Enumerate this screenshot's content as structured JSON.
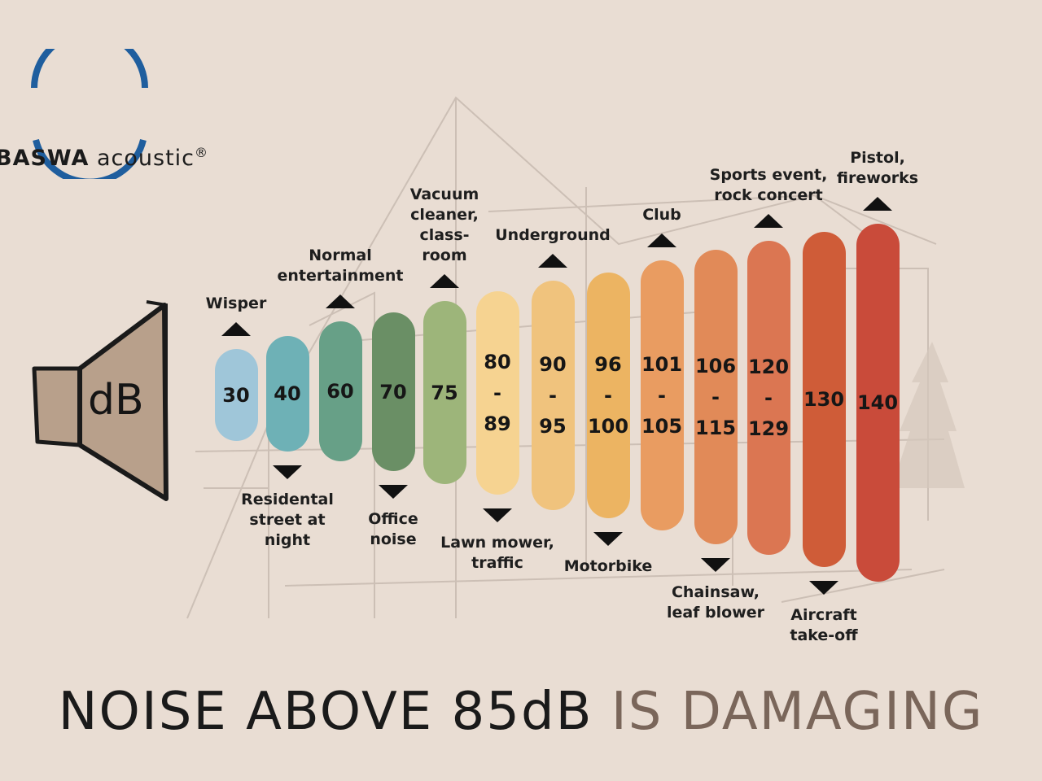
{
  "logo": {
    "brand": "BASWA",
    "word": "acoustic",
    "reg": "®",
    "ring_color": "#1f5e9e"
  },
  "speaker": {
    "label": "dB"
  },
  "headline": {
    "part1": "NOISE ABOVE 85dB ",
    "part2": "IS DAMAGING"
  },
  "chart_data": {
    "type": "bar",
    "title": "",
    "unit": "dB",
    "levels": [
      {
        "lines": [
          "30"
        ],
        "min": 30,
        "max": 30,
        "color": "#9fc6d9",
        "label": "Wisper",
        "label_side": "top"
      },
      {
        "lines": [
          "40"
        ],
        "min": 40,
        "max": 40,
        "color": "#6eb1b6",
        "label": "Residental\nstreet at\nnight",
        "label_side": "bottom"
      },
      {
        "lines": [
          "60"
        ],
        "min": 60,
        "max": 60,
        "color": "#67a087",
        "label": "Normal\nentertainment",
        "label_side": "top"
      },
      {
        "lines": [
          "70"
        ],
        "min": 70,
        "max": 70,
        "color": "#6a8f65",
        "label": "Office\nnoise",
        "label_side": "bottom"
      },
      {
        "lines": [
          "75"
        ],
        "min": 75,
        "max": 75,
        "color": "#9db57a",
        "label": "Vacuum\ncleaner,\nclass-\nroom",
        "label_side": "top"
      },
      {
        "lines": [
          "80",
          "-",
          "89"
        ],
        "min": 80,
        "max": 89,
        "color": "#f6d391",
        "label": "Lawn mower,\ntraffic",
        "label_side": "bottom"
      },
      {
        "lines": [
          "90",
          "-",
          "95"
        ],
        "min": 90,
        "max": 95,
        "color": "#f0c37d",
        "label": "Underground",
        "label_side": "top"
      },
      {
        "lines": [
          "96",
          "-",
          "100"
        ],
        "min": 96,
        "max": 100,
        "color": "#ecb462",
        "label": "Motorbike",
        "label_side": "bottom"
      },
      {
        "lines": [
          "101",
          "-",
          "105"
        ],
        "min": 101,
        "max": 105,
        "color": "#e99c61",
        "label": "Club",
        "label_side": "top"
      },
      {
        "lines": [
          "106",
          "-",
          "115"
        ],
        "min": 106,
        "max": 115,
        "color": "#e18a58",
        "label": "Chainsaw,\nleaf blower",
        "label_side": "bottom"
      },
      {
        "lines": [
          "120",
          "-",
          "129"
        ],
        "min": 120,
        "max": 129,
        "color": "#db7652",
        "label": "Sports event,\nrock concert",
        "label_side": "top"
      },
      {
        "lines": [
          "130"
        ],
        "min": 130,
        "max": 130,
        "color": "#cf5c38",
        "label": "Aircraft\ntake-off",
        "label_side": "bottom"
      },
      {
        "lines": [
          "140"
        ],
        "min": 140,
        "max": 140,
        "color": "#c94b3a",
        "label": "Pistol,\nfireworks",
        "label_side": "top"
      }
    ]
  }
}
